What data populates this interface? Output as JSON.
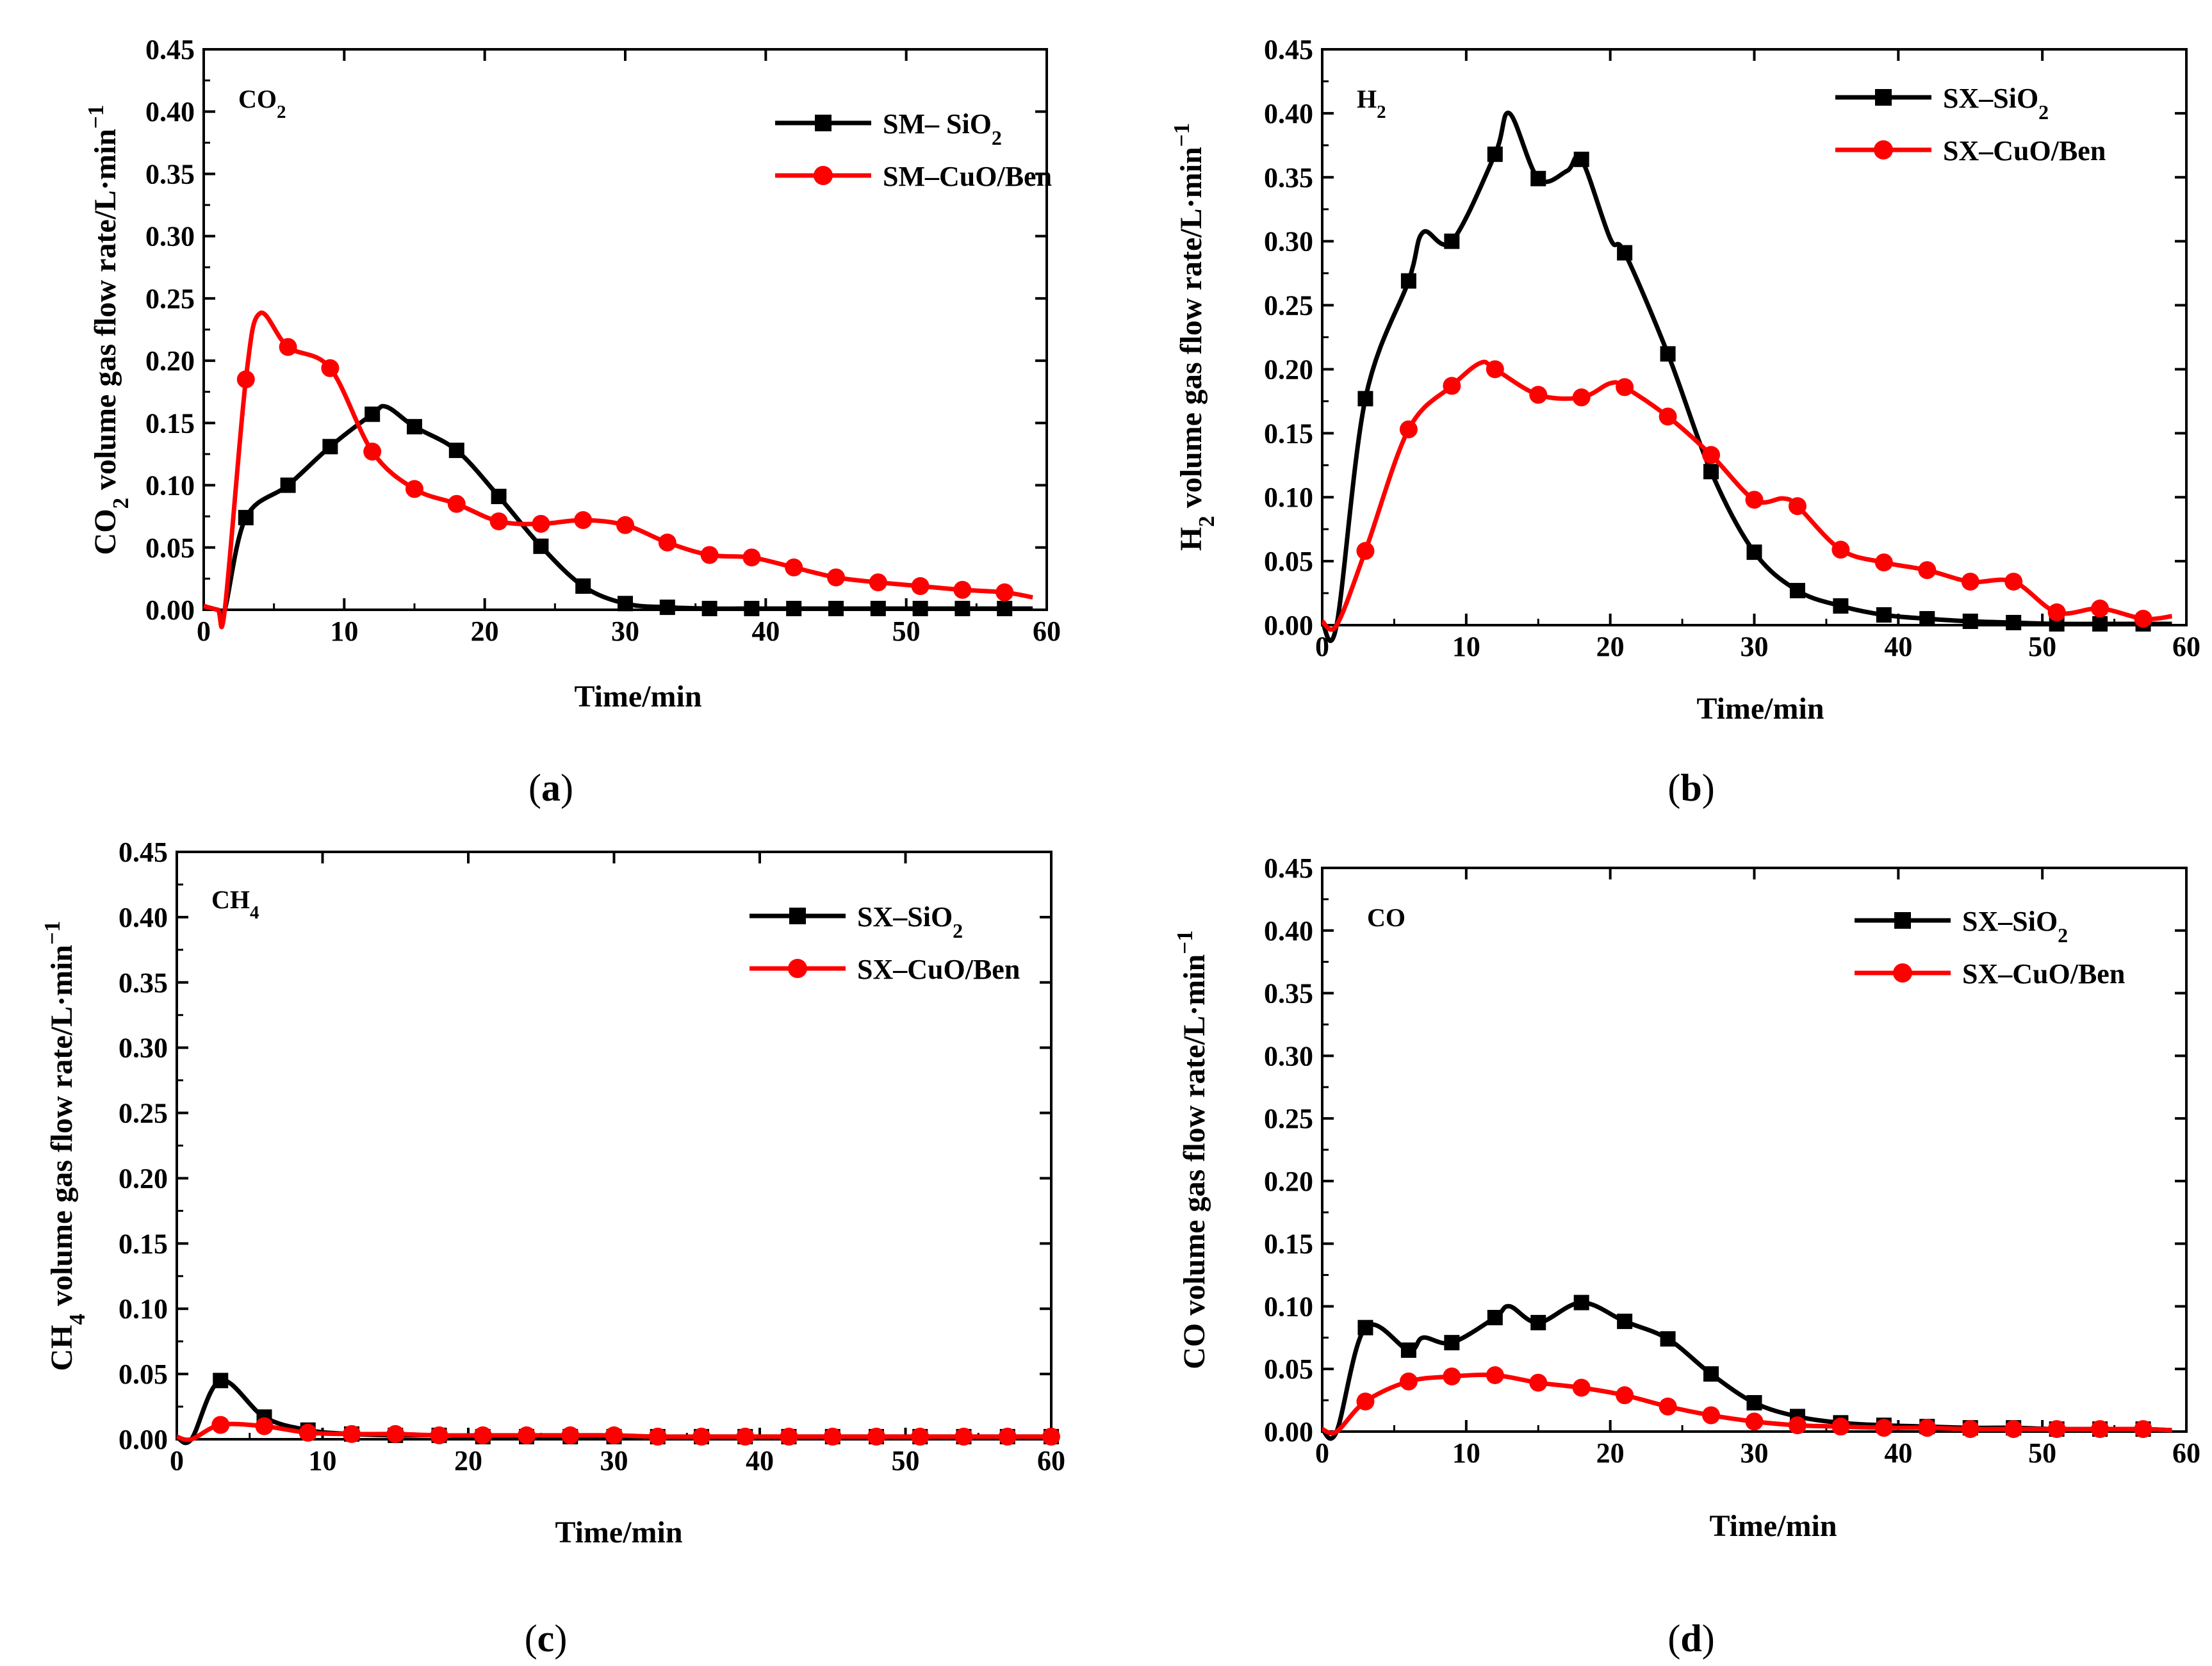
{
  "panels": [
    {
      "caption": "(a)",
      "gas_label": "CO2",
      "colors": {
        "s1": "#000000",
        "s2": "#ff0000"
      },
      "legend": [
        "SM– SiO2",
        "SM–CuO/Ben"
      ],
      "xlabel": "Time/min",
      "ylabel": "CO2 volume gas flow rate/L·min−1"
    },
    {
      "caption": "(b)",
      "gas_label": "H2",
      "legend": [
        "SX–SiO2",
        "SX–CuO/Ben"
      ],
      "xlabel": "Time/min",
      "ylabel": "H2 volume gas flow rate/L·min−1"
    },
    {
      "caption": "(c)",
      "gas_label": "CH4",
      "legend": [
        "SX–SiO2",
        "SX–CuO/Ben"
      ],
      "xlabel": "Time/min",
      "ylabel": "CH4 volume gas flow rate/L·min−1"
    },
    {
      "caption": "(d)",
      "gas_label": "CO",
      "legend": [
        "SX–SiO2",
        "SX–CuO/Ben"
      ],
      "xlabel": "Time/min",
      "ylabel": "CO volume gas flow rate/L·min−1"
    }
  ],
  "chart_data": [
    {
      "type": "line",
      "gas_label": "CO2",
      "xlabel": "Time/min",
      "ylabel": "CO2 volume gas flow rate/L·min−1",
      "xlim": [
        0,
        60
      ],
      "ylim": [
        0,
        0.45
      ],
      "x_ticks": [
        0,
        10,
        20,
        30,
        40,
        50,
        60
      ],
      "y_ticks": [
        0.0,
        0.05,
        0.1,
        0.15,
        0.2,
        0.25,
        0.3,
        0.35,
        0.4,
        0.45
      ],
      "legend_position": "top-right",
      "grid": false,
      "series": [
        {
          "name": "SM– SiO2",
          "color": "#000000",
          "marker": "square",
          "x": [
            0,
            1,
            1.5,
            3,
            6,
            9,
            12,
            13,
            15,
            18,
            21,
            24,
            27,
            30,
            33,
            36,
            39,
            42,
            45,
            48,
            51,
            54,
            57,
            59
          ],
          "y": [
            0.003,
            0.0,
            0.0,
            0.074,
            0.1,
            0.131,
            0.157,
            0.163,
            0.147,
            0.128,
            0.091,
            0.051,
            0.019,
            0.005,
            0.002,
            0.001,
            0.001,
            0.001,
            0.001,
            0.001,
            0.001,
            0.001,
            0.001,
            0.001
          ]
        },
        {
          "name": "SM–CuO/Ben",
          "color": "#ff0000",
          "marker": "circle",
          "x": [
            0,
            1,
            1.5,
            3,
            4,
            6,
            9,
            12,
            15,
            18,
            21,
            24,
            27,
            30,
            33,
            36,
            39,
            42,
            45,
            48,
            51,
            54,
            57,
            59
          ],
          "y": [
            0.003,
            0.0,
            0.0,
            0.185,
            0.238,
            0.211,
            0.194,
            0.127,
            0.097,
            0.085,
            0.071,
            0.069,
            0.072,
            0.068,
            0.054,
            0.044,
            0.042,
            0.034,
            0.026,
            0.022,
            0.019,
            0.016,
            0.014,
            0.01
          ]
        }
      ]
    },
    {
      "type": "line",
      "gas_label": "H2",
      "xlabel": "Time/min",
      "ylabel": "H2 volume gas flow rate/L·min−1",
      "xlim": [
        0,
        60
      ],
      "ylim": [
        0,
        0.45
      ],
      "x_ticks": [
        0,
        10,
        20,
        30,
        40,
        50,
        60
      ],
      "y_ticks": [
        0.0,
        0.05,
        0.1,
        0.15,
        0.2,
        0.25,
        0.3,
        0.35,
        0.4,
        0.45
      ],
      "legend_position": "top-right",
      "grid": false,
      "series": [
        {
          "name": "SX–SiO2",
          "color": "#000000",
          "marker": "square",
          "x": [
            0,
            1,
            3,
            6,
            7,
            9,
            12,
            13,
            15,
            17,
            18,
            20,
            21,
            24,
            27,
            30,
            33,
            36,
            39,
            42,
            45,
            48,
            51,
            54,
            57,
            59
          ],
          "y": [
            0.003,
            0.0,
            0.177,
            0.269,
            0.307,
            0.3,
            0.368,
            0.4,
            0.349,
            0.355,
            0.364,
            0.302,
            0.291,
            0.212,
            0.12,
            0.057,
            0.027,
            0.015,
            0.008,
            0.005,
            0.003,
            0.002,
            0.001,
            0.001,
            0.001,
            0.001
          ]
        },
        {
          "name": "SX–CuO/Ben",
          "color": "#ff0000",
          "marker": "circle",
          "x": [
            0,
            1,
            3,
            6,
            9,
            11,
            12,
            15,
            18,
            20,
            21,
            24,
            27,
            30,
            32,
            33,
            36,
            39,
            42,
            45,
            48,
            51,
            54,
            57,
            59
          ],
          "y": [
            0.003,
            0.0,
            0.058,
            0.153,
            0.187,
            0.205,
            0.2,
            0.18,
            0.178,
            0.189,
            0.186,
            0.163,
            0.133,
            0.098,
            0.099,
            0.093,
            0.059,
            0.049,
            0.043,
            0.034,
            0.034,
            0.01,
            0.013,
            0.005,
            0.007
          ]
        }
      ]
    },
    {
      "type": "line",
      "gas_label": "CH4",
      "xlabel": "Time/min",
      "ylabel": "CH4 volume gas flow rate/L·min−1",
      "xlim": [
        0,
        60
      ],
      "ylim": [
        0,
        0.45
      ],
      "x_ticks": [
        0,
        10,
        20,
        30,
        40,
        50,
        60
      ],
      "y_ticks": [
        0.0,
        0.05,
        0.1,
        0.15,
        0.2,
        0.25,
        0.3,
        0.35,
        0.4,
        0.45
      ],
      "legend_position": "top-right",
      "grid": false,
      "series": [
        {
          "name": "SX–SiO2",
          "color": "#000000",
          "marker": "square",
          "x": [
            0,
            1,
            3,
            6,
            9,
            12,
            15,
            18,
            21,
            24,
            27,
            30,
            33,
            36,
            39,
            42,
            45,
            48,
            51,
            54,
            57,
            60
          ],
          "y": [
            0.002,
            0.0,
            0.045,
            0.017,
            0.007,
            0.004,
            0.003,
            0.003,
            0.002,
            0.002,
            0.002,
            0.002,
            0.002,
            0.002,
            0.002,
            0.002,
            0.002,
            0.002,
            0.002,
            0.002,
            0.002,
            0.002
          ]
        },
        {
          "name": "SX–CuO/Ben",
          "color": "#ff0000",
          "marker": "circle",
          "x": [
            0,
            1,
            3,
            6,
            9,
            12,
            15,
            18,
            21,
            24,
            27,
            30,
            33,
            36,
            39,
            42,
            45,
            48,
            51,
            54,
            57,
            60
          ],
          "y": [
            0.002,
            0.0,
            0.011,
            0.01,
            0.005,
            0.004,
            0.004,
            0.003,
            0.003,
            0.003,
            0.003,
            0.003,
            0.002,
            0.002,
            0.002,
            0.002,
            0.002,
            0.002,
            0.002,
            0.002,
            0.002,
            0.002
          ]
        }
      ]
    },
    {
      "type": "line",
      "gas_label": "CO",
      "xlabel": "Time/min",
      "ylabel": "CO volume gas flow rate/L·min−1",
      "xlim": [
        0,
        60
      ],
      "ylim": [
        0,
        0.45
      ],
      "x_ticks": [
        0,
        10,
        20,
        30,
        40,
        50,
        60
      ],
      "y_ticks": [
        0.0,
        0.05,
        0.1,
        0.15,
        0.2,
        0.25,
        0.3,
        0.35,
        0.4,
        0.45
      ],
      "legend_position": "top-right",
      "grid": false,
      "series": [
        {
          "name": "SX–SiO2",
          "color": "#000000",
          "marker": "square",
          "x": [
            0,
            1,
            3,
            6,
            7,
            9,
            12,
            13,
            15,
            18,
            21,
            24,
            27,
            30,
            33,
            36,
            39,
            42,
            45,
            48,
            51,
            54,
            57,
            59
          ],
          "y": [
            0.002,
            0.0,
            0.083,
            0.065,
            0.075,
            0.071,
            0.091,
            0.1,
            0.087,
            0.103,
            0.088,
            0.074,
            0.046,
            0.023,
            0.012,
            0.007,
            0.005,
            0.004,
            0.003,
            0.003,
            0.002,
            0.002,
            0.002,
            0.001
          ]
        },
        {
          "name": "SX–CuO/Ben",
          "color": "#ff0000",
          "marker": "circle",
          "x": [
            0,
            1,
            3,
            6,
            9,
            12,
            15,
            18,
            21,
            24,
            27,
            30,
            33,
            36,
            39,
            42,
            45,
            48,
            51,
            54,
            57,
            59
          ],
          "y": [
            0.002,
            0.0,
            0.024,
            0.04,
            0.044,
            0.045,
            0.039,
            0.035,
            0.029,
            0.02,
            0.013,
            0.008,
            0.005,
            0.004,
            0.003,
            0.003,
            0.002,
            0.002,
            0.002,
            0.002,
            0.002,
            0.001
          ]
        }
      ]
    }
  ]
}
